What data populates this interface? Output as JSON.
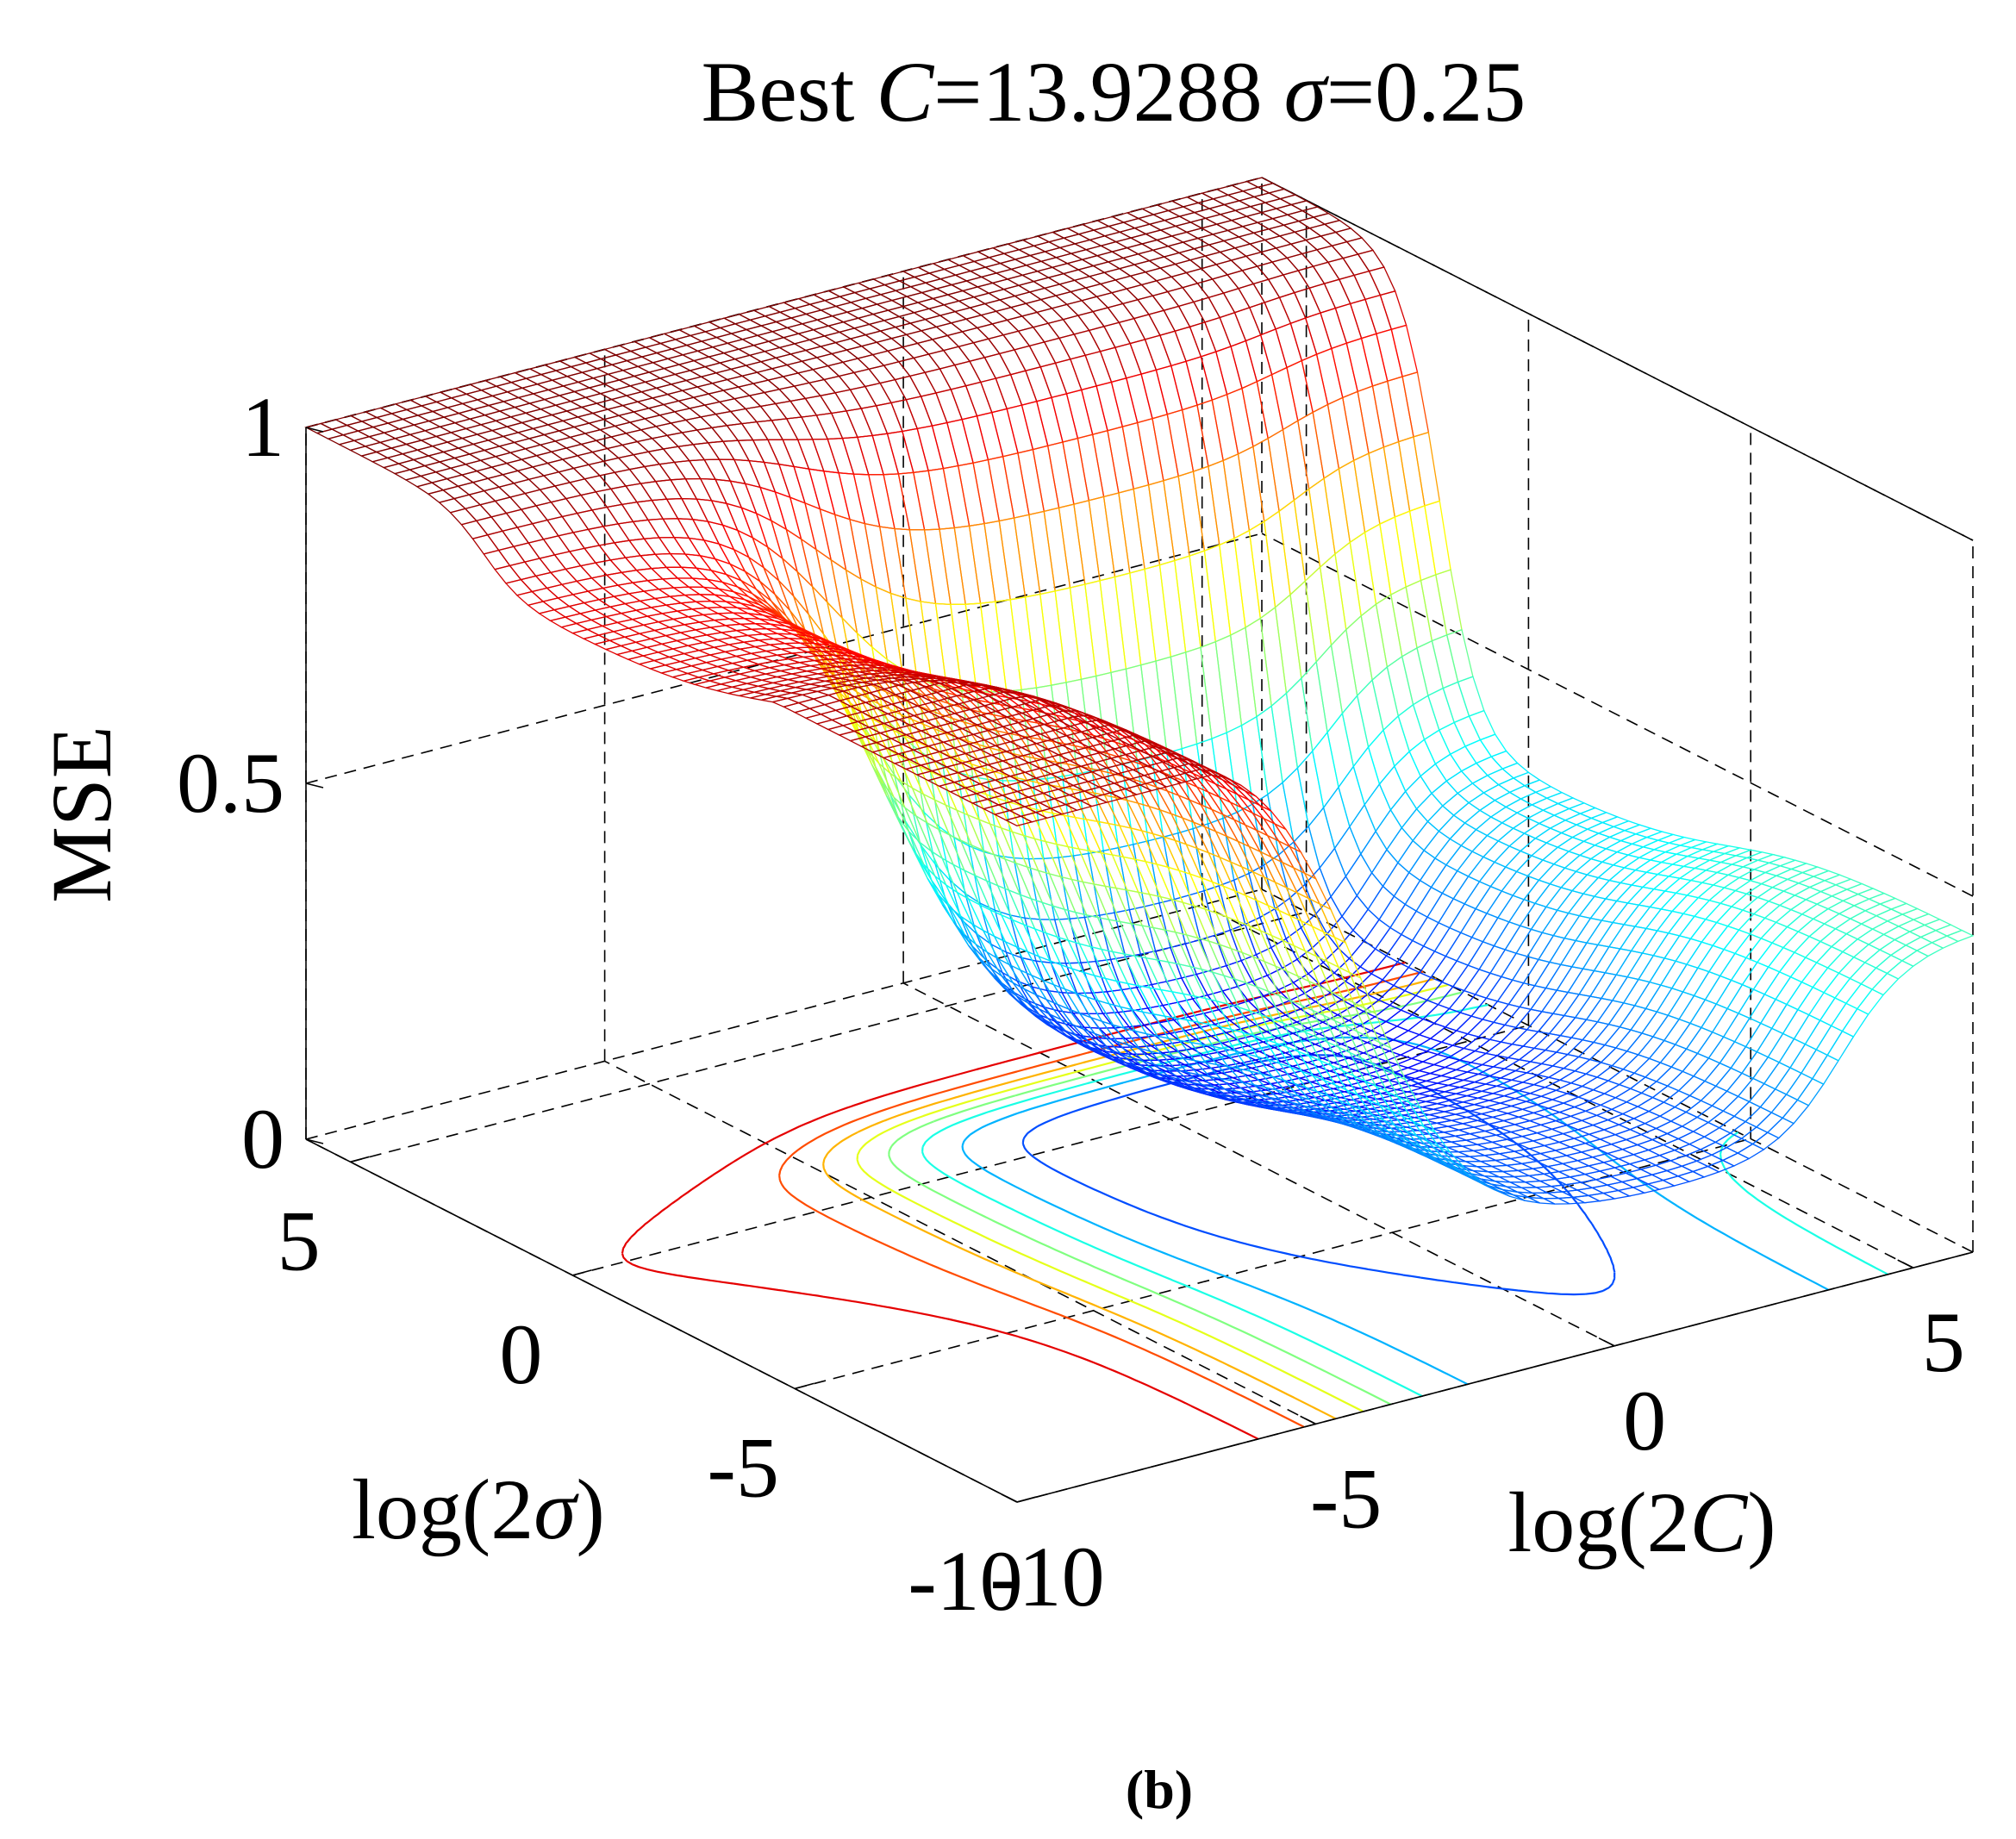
{
  "chart_data": {
    "type": "surface",
    "title_parts": [
      "Best ",
      "C",
      "=13.9288 ",
      "σ",
      "=0.25"
    ],
    "zlabel": "MSE",
    "xlabel_parts": [
      "log(2",
      "C",
      ")"
    ],
    "ylabel_parts": [
      "log(2",
      "σ",
      ")"
    ],
    "x_ticks": [
      {
        "value": -10,
        "label": "-10"
      },
      {
        "value": -5,
        "label": "-5"
      },
      {
        "value": 0,
        "label": "0"
      },
      {
        "value": 5,
        "label": "5"
      }
    ],
    "y_ticks": [
      {
        "value": -10,
        "label": "-10"
      },
      {
        "value": -5,
        "label": "-5"
      },
      {
        "value": 0,
        "label": "0"
      },
      {
        "value": 5,
        "label": "5"
      }
    ],
    "z_ticks": [
      {
        "value": 0,
        "label": "0"
      },
      {
        "value": 0.5,
        "label": "0.5"
      },
      {
        "value": 1,
        "label": "1"
      }
    ],
    "xlim": [
      -10,
      6
    ],
    "ylim": [
      -10,
      6
    ],
    "zlim": [
      0,
      1
    ],
    "grid": true,
    "colormap": "jet",
    "contour_levels": [
      0.1,
      0.2,
      0.3,
      0.4,
      0.5,
      0.6,
      0.7,
      0.8,
      0.9
    ],
    "best": {
      "C": 13.9288,
      "sigma": 0.25
    },
    "surface_description": "MSE near 1 for log(2σ) > ~2, drops to ~0.08 minimum valley for small σ and large C, rising to ~0.75 at very small σ"
  },
  "caption": "(b)"
}
